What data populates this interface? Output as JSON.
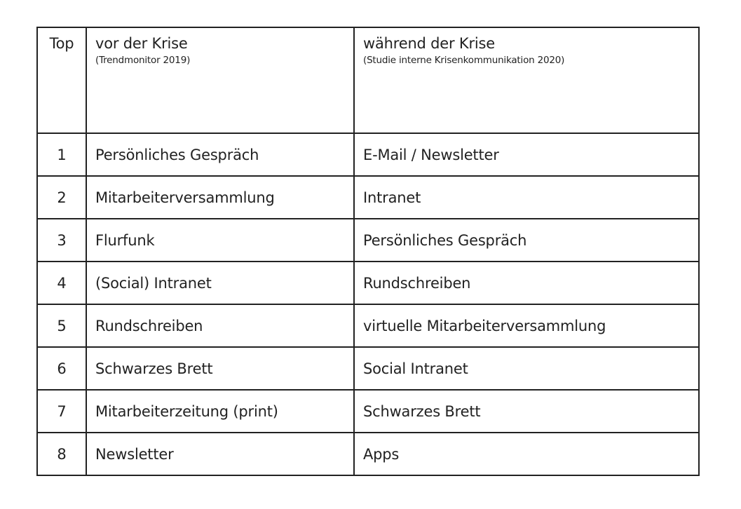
{
  "header": {
    "rank": "Top",
    "before": {
      "title": "vor der Krise",
      "source": "(Trendmonitor 2019)"
    },
    "during": {
      "title": "während der Krise",
      "source": "(Studie interne Krisenkommunikation 2020)"
    }
  },
  "rows": [
    {
      "rank": "1",
      "before": "Persönliches Gespräch",
      "during": "E-Mail / Newsletter"
    },
    {
      "rank": "2",
      "before": "Mitarbeiterversammlung",
      "during": "Intranet"
    },
    {
      "rank": "3",
      "before": "Flurfunk",
      "during": "Persönliches Gespräch"
    },
    {
      "rank": "4",
      "before": "(Social) Intranet",
      "during": "Rundschreiben"
    },
    {
      "rank": "5",
      "before": "Rundschreiben",
      "during": "virtuelle Mitarbeiterversammlung"
    },
    {
      "rank": "6",
      "before": "Schwarzes Brett",
      "during": "Social Intranet"
    },
    {
      "rank": "7",
      "before": "Mitarbeiterzeitung (print)",
      "during": "Schwarzes Brett"
    },
    {
      "rank": "8",
      "before": "Newsletter",
      "during": "Apps"
    }
  ]
}
